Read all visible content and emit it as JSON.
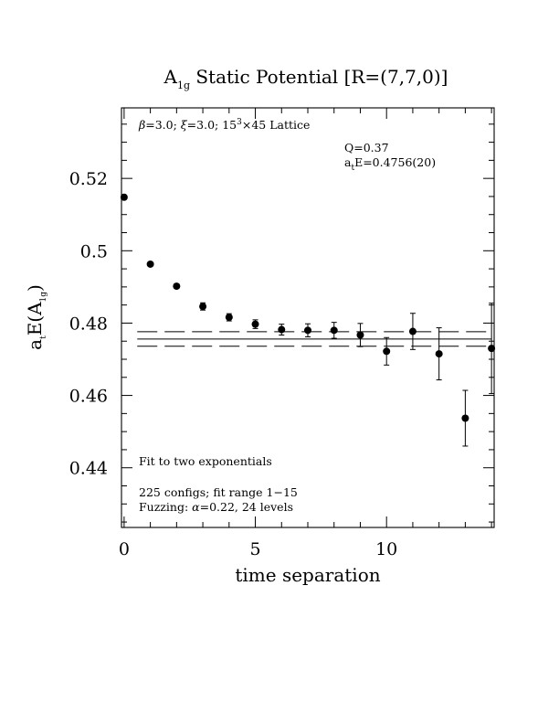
{
  "chart_data": {
    "type": "scatter",
    "title": {
      "main": "A",
      "sub": "1g",
      "rest": " Static Potential [R=(7,7,0)]"
    },
    "xlabel": "time separation",
    "ylabel": {
      "a": "a",
      "t": "t",
      "e": "E(A",
      "sub": "1g",
      "close": ")"
    },
    "xlim": [
      -0.1,
      14.1
    ],
    "ylim": [
      0.4235,
      0.5395
    ],
    "x_ticks": [
      0,
      5,
      10
    ],
    "x_tick_labels": [
      "0",
      "5",
      "10"
    ],
    "y_ticks": [
      0.44,
      0.46,
      0.48,
      0.5,
      0.52
    ],
    "y_tick_labels": [
      "0.44",
      "0.46",
      "0.48",
      "0.5",
      "0.52"
    ],
    "grid": false,
    "series": [
      {
        "x": [
          0,
          1,
          2,
          3,
          4,
          5,
          6,
          7,
          8,
          9,
          10,
          11,
          12,
          13,
          14
        ],
        "y": [
          0.5148,
          0.4963,
          0.4902,
          0.4846,
          0.4816,
          0.4797,
          0.4782,
          0.478,
          0.478,
          0.4767,
          0.4722,
          0.4777,
          0.4715,
          0.4537,
          0.473
        ],
        "err": [
          0.0004,
          0.0005,
          0.0006,
          0.001,
          0.001,
          0.0012,
          0.0015,
          0.0018,
          0.0022,
          0.0032,
          0.0038,
          0.005,
          0.0072,
          0.0077,
          0.0125
        ]
      }
    ],
    "fit": {
      "value": 0.4756,
      "error": 0.002,
      "x_range": [
        0.5,
        14
      ]
    },
    "annotations": {
      "lattice": {
        "beta": "β",
        "beta_val": "=3.0; ",
        "xi": "ξ",
        "xi_val": "=3.0; 15",
        "sup": "3",
        "rest": "×45 Lattice"
      },
      "q": "Q=0.37",
      "energy": {
        "a": "a",
        "sub": "t",
        "rest": "E=0.4756(20)"
      },
      "fit_desc": "Fit to two exponentials",
      "configs": "225 configs; fit range 1−15",
      "fuzzing": {
        "label": "Fuzzing: ",
        "alpha": "α",
        "rest": "=0.22, 24 levels"
      }
    }
  }
}
